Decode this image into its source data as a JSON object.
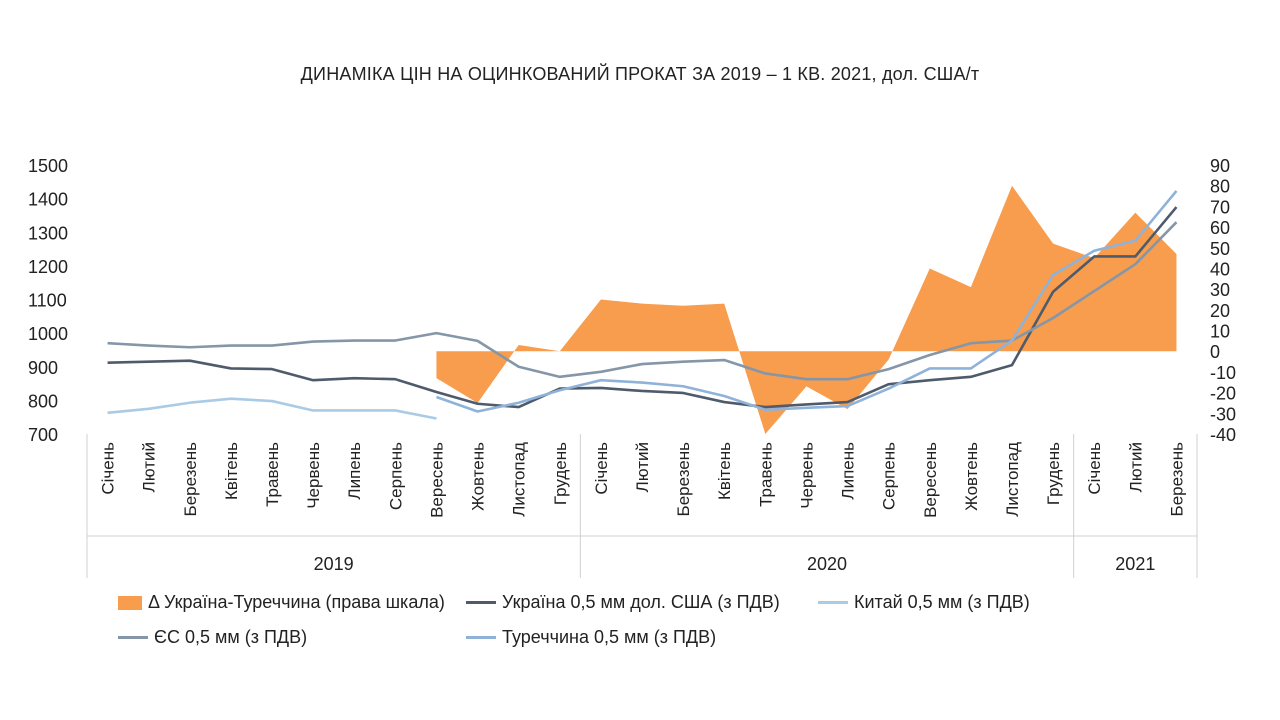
{
  "chart_data": {
    "type": "line",
    "title": "ДИНАМІКА ЦІН НА ОЦИНКОВАНИЙ ПРОКАТ ЗА 2019 – 1 КВ. 2021, дол. США/т",
    "categories": [
      "Січень",
      "Лютий",
      "Березень",
      "Квітень",
      "Травень",
      "Червень",
      "Липень",
      "Серпень",
      "Вересень",
      "Жовтень",
      "Листопад",
      "Грудень",
      "Січень",
      "Лютий",
      "Березень",
      "Квітень",
      "Травень",
      "Червень",
      "Липень",
      "Серпень",
      "Вересень",
      "Жовтень",
      "Листопад",
      "Грудень",
      "Січень",
      "Лютий",
      "Березень"
    ],
    "years": [
      {
        "label": "2019",
        "start": 0,
        "end": 11
      },
      {
        "label": "2020",
        "start": 12,
        "end": 23
      },
      {
        "label": "2021",
        "start": 24,
        "end": 26
      }
    ],
    "ylim_left": [
      700,
      1500
    ],
    "yticks_left": [
      700,
      800,
      900,
      1000,
      1100,
      1200,
      1300,
      1400,
      1500
    ],
    "ylim_right": [
      -40,
      90
    ],
    "yticks_right": [
      -40,
      -30,
      -20,
      -10,
      0,
      10,
      20,
      30,
      40,
      50,
      60,
      70,
      80,
      90
    ],
    "legend_position": "bottom",
    "series": [
      {
        "name": "Δ Україна-Туреччина (права шкала)",
        "kind": "area",
        "axis": "right",
        "color": "#F79D4D",
        "values": [
          null,
          null,
          null,
          null,
          null,
          null,
          null,
          null,
          -13,
          -25,
          3,
          0,
          25,
          23,
          22,
          23,
          -40,
          -17,
          -28,
          -4,
          40,
          31,
          80,
          52,
          45,
          67,
          47
        ]
      },
      {
        "name": "Україна 0,5 мм дол. США (з ПДВ)",
        "kind": "line",
        "axis": "left",
        "color": "#4F5B6B",
        "values": [
          912,
          915,
          918,
          895,
          893,
          860,
          866,
          863,
          825,
          790,
          780,
          835,
          837,
          828,
          822,
          795,
          780,
          788,
          795,
          848,
          860,
          870,
          905,
          1123,
          1228,
          1228,
          1375
        ]
      },
      {
        "name": "Китай 0,5 мм (з ПДВ)",
        "kind": "line",
        "axis": "left",
        "color": "#A9CBE6",
        "values": [
          763,
          775,
          793,
          805,
          798,
          770,
          770,
          770,
          746,
          null,
          null,
          null,
          null,
          null,
          null,
          null,
          null,
          null,
          null,
          null,
          null,
          null,
          null,
          null,
          null,
          null,
          null
        ]
      },
      {
        "name": "ЄС 0,5 мм (з ПДВ)",
        "kind": "line",
        "axis": "left",
        "color": "#8496A8",
        "values": [
          970,
          963,
          958,
          963,
          963,
          975,
          978,
          978,
          1000,
          977,
          900,
          870,
          885,
          908,
          915,
          920,
          880,
          863,
          863,
          893,
          935,
          970,
          978,
          1045,
          1125,
          1205,
          1330
        ]
      },
      {
        "name": "Туреччина 0,5 мм (з ПДВ)",
        "kind": "line",
        "axis": "left",
        "color": "#8FB2D9",
        "values": [
          null,
          null,
          null,
          null,
          null,
          null,
          null,
          null,
          810,
          767,
          793,
          830,
          860,
          853,
          842,
          813,
          772,
          778,
          783,
          835,
          895,
          895,
          978,
          1173,
          1245,
          1275,
          1423
        ]
      }
    ]
  }
}
